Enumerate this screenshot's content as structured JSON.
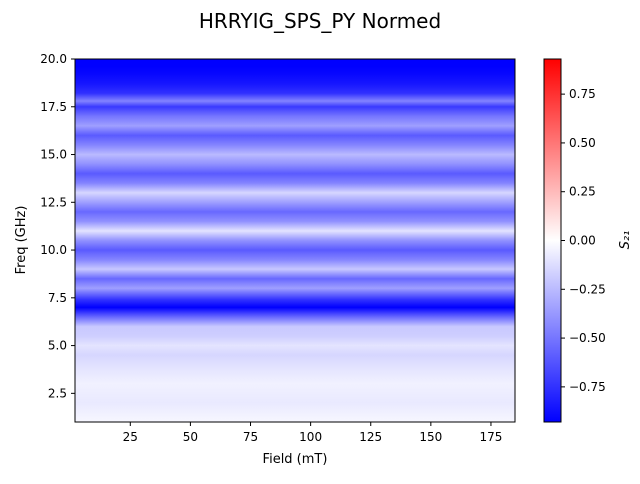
{
  "chart_data": {
    "type": "heatmap",
    "title": "HRRYIG_SPS_PY Normed",
    "xlabel": "Field (mT)",
    "ylabel": "Freq (GHz)",
    "xlim": [
      2,
      185
    ],
    "ylim": [
      1.0,
      20.0
    ],
    "x_ticks": [
      25,
      50,
      75,
      100,
      125,
      150,
      175
    ],
    "x_tick_labels": [
      "25",
      "50",
      "75",
      "100",
      "125",
      "150",
      "175"
    ],
    "y_ticks": [
      2.5,
      5.0,
      7.5,
      10.0,
      12.5,
      15.0,
      17.5,
      20.0
    ],
    "y_tick_labels": [
      "2.5",
      "5.0",
      "7.5",
      "10.0",
      "12.5",
      "15.0",
      "17.5",
      "20.0"
    ],
    "colorbar": {
      "label": "S₂₁",
      "range": [
        -0.93,
        0.93
      ],
      "ticks": [
        0.75,
        0.5,
        0.25,
        0.0,
        -0.25,
        -0.5,
        -0.75
      ],
      "tick_labels": [
        "0.75",
        "0.50",
        "0.25",
        "0.00",
        "−0.25",
        "−0.50",
        "−0.75"
      ],
      "colormap": "bwr",
      "color_low": "#0000ff",
      "color_mid": "#ffffff",
      "color_high": "#ff0000"
    },
    "frequency_profile": {
      "note_units": "freq in GHz, value is S21 (constant across field)",
      "freq": [
        1.0,
        2.0,
        3.0,
        3.8,
        4.5,
        5.0,
        5.5,
        6.0,
        6.5,
        7.0,
        7.4,
        8.0,
        8.5,
        9.0,
        9.5,
        10.0,
        10.5,
        11.0,
        11.5,
        12.0,
        12.5,
        13.0,
        13.5,
        14.0,
        14.5,
        15.0,
        15.5,
        16.0,
        16.5,
        17.0,
        17.5,
        17.8,
        18.2,
        18.7,
        19.2,
        19.6,
        20.0
      ],
      "value": [
        -0.03,
        -0.08,
        -0.05,
        -0.1,
        -0.15,
        -0.1,
        -0.18,
        -0.2,
        -0.55,
        -0.93,
        -0.75,
        -0.35,
        -0.55,
        -0.2,
        -0.45,
        -0.6,
        -0.4,
        -0.1,
        -0.4,
        -0.55,
        -0.35,
        -0.15,
        -0.45,
        -0.6,
        -0.4,
        -0.25,
        -0.45,
        -0.6,
        -0.35,
        -0.5,
        -0.72,
        -0.45,
        -0.75,
        -0.85,
        -0.9,
        -0.93,
        -0.95
      ]
    }
  }
}
